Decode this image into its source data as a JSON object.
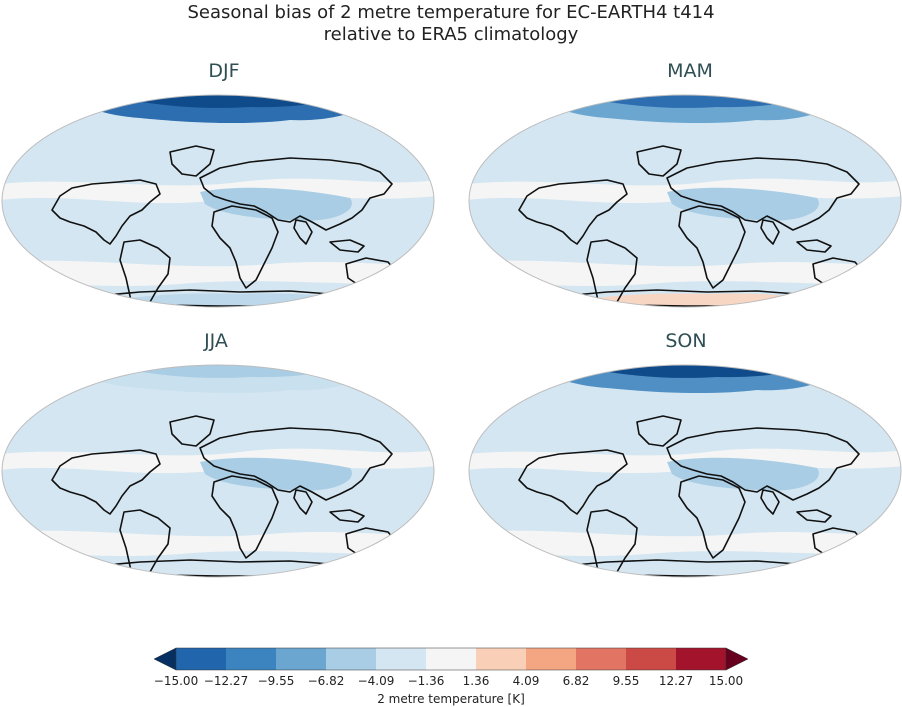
{
  "title": {
    "line1": "Seasonal bias of 2 metre temperature for EC-EARTH4 t414",
    "line2": "relative to ERA5 climatology"
  },
  "panels": [
    {
      "id": "djf",
      "label": "DJF",
      "arctic_color": "#0f4a8a",
      "arctic2_color": "#2d6eb0",
      "antarctic_color": "#bcd8ea"
    },
    {
      "id": "mam",
      "label": "MAM",
      "arctic_color": "#2d6eb0",
      "arctic2_color": "#6aa6d0",
      "antarctic_color": "#f8d6c4"
    },
    {
      "id": "jja",
      "label": "JJA",
      "arctic_color": "#a9cde4",
      "arctic2_color": "#c9e0ee",
      "antarctic_color": "#d7e7f2"
    },
    {
      "id": "son",
      "label": "SON",
      "arctic_color": "#0f4a8a",
      "arctic2_color": "#4f8fc4",
      "antarctic_color": "#d7e7f2"
    }
  ],
  "colorbar": {
    "label": "2 metre temperature [K]",
    "ticks": [
      "−15.00",
      "−12.27",
      "−9.55",
      "−6.82",
      "−4.09",
      "−1.36",
      "1.36",
      "4.09",
      "6.82",
      "9.55",
      "12.27",
      "15.00"
    ],
    "colors": [
      "#2166ac",
      "#3c84c0",
      "#6aa6d0",
      "#a9cde4",
      "#d4e6f1",
      "#f5f5f5",
      "#f9cfb8",
      "#f4a582",
      "#e27463",
      "#cc4a45",
      "#a3142c"
    ],
    "under_color": "#053061",
    "over_color": "#67001f"
  }
}
